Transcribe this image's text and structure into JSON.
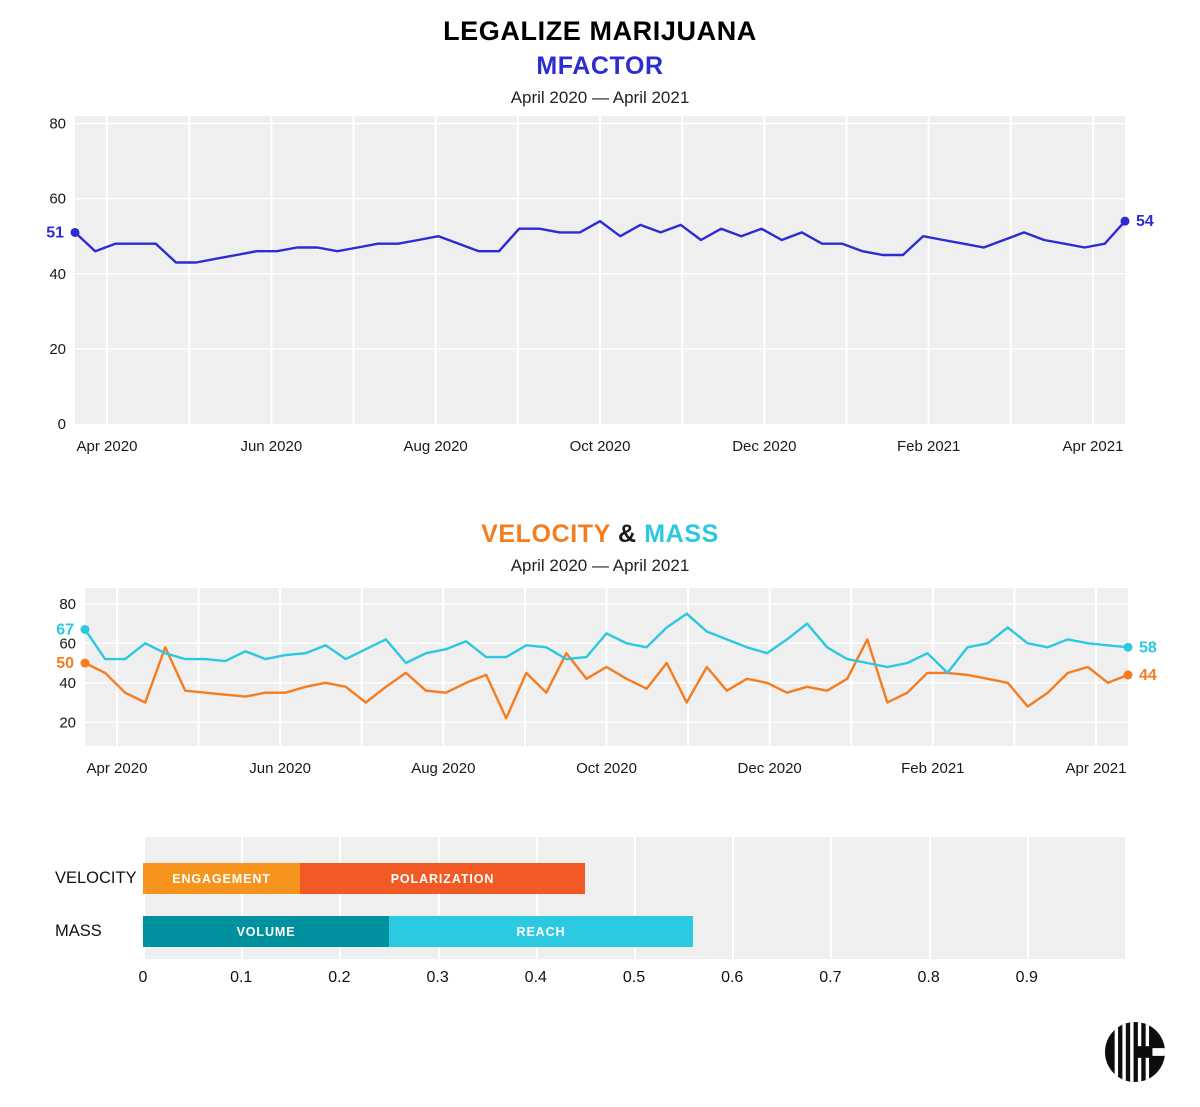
{
  "header": {
    "title": "LEGALIZE MARIJUANA"
  },
  "logo": {
    "icon": "barcode-circle-logo"
  },
  "chart_data": [
    {
      "id": "mfactor",
      "type": "line",
      "title": "MFACTOR",
      "title_color": "#2D2BD2",
      "subtitle": "April 2020 — April 2021",
      "ylim": [
        0,
        82
      ],
      "yticks": [
        0,
        20,
        40,
        60,
        80
      ],
      "grid": "on",
      "xticklabels": [
        "Apr 2020",
        "Jun 2020",
        "Aug 2020",
        "Oct 2020",
        "Dec 2020",
        "Feb 2021",
        "Apr 2021"
      ],
      "series": [
        {
          "name": "mfactor",
          "color": "#2D2BD2",
          "start_label": "51",
          "end_label": "54",
          "values": [
            51,
            46,
            48,
            48,
            48,
            43,
            43,
            44,
            45,
            46,
            46,
            47,
            47,
            46,
            47,
            48,
            48,
            49,
            50,
            48,
            46,
            46,
            52,
            52,
            51,
            51,
            54,
            50,
            53,
            51,
            53,
            49,
            52,
            50,
            52,
            49,
            51,
            48,
            48,
            46,
            45,
            45,
            50,
            49,
            48,
            47,
            49,
            51,
            49,
            48,
            47,
            48,
            54
          ]
        }
      ]
    },
    {
      "id": "velocity-mass",
      "type": "line",
      "title_parts": [
        {
          "text": "VELOCITY",
          "color": "#F57C1F"
        },
        {
          "text": " & ",
          "color": "#1a1a1a"
        },
        {
          "text": "MASS",
          "color": "#2BC8E2"
        }
      ],
      "subtitle": "April 2020 — April 2021",
      "ylim": [
        8,
        88
      ],
      "yticks": [
        20,
        40,
        60,
        80
      ],
      "grid": "on",
      "xticklabels": [
        "Apr 2020",
        "Jun 2020",
        "Aug 2020",
        "Oct 2020",
        "Dec 2020",
        "Feb 2021",
        "Apr 2021"
      ],
      "series": [
        {
          "name": "velocity",
          "color": "#F57C1F",
          "start_label": "50",
          "end_label": "44",
          "values": [
            50,
            45,
            35,
            30,
            58,
            36,
            35,
            34,
            33,
            35,
            35,
            38,
            40,
            38,
            30,
            38,
            45,
            36,
            35,
            40,
            44,
            22,
            45,
            35,
            55,
            42,
            48,
            42,
            37,
            50,
            30,
            48,
            36,
            42,
            40,
            35,
            38,
            36,
            42,
            62,
            30,
            35,
            45,
            45,
            44,
            42,
            40,
            28,
            35,
            45,
            48,
            40,
            44
          ]
        },
        {
          "name": "mass",
          "color": "#2BC8E2",
          "start_label": "67",
          "end_label": "58",
          "values": [
            67,
            52,
            52,
            60,
            55,
            52,
            52,
            51,
            56,
            52,
            54,
            55,
            59,
            52,
            57,
            62,
            50,
            55,
            57,
            61,
            53,
            53,
            59,
            58,
            52,
            53,
            65,
            60,
            58,
            68,
            75,
            66,
            62,
            58,
            55,
            62,
            70,
            58,
            52,
            50,
            48,
            50,
            55,
            45,
            58,
            60,
            68,
            60,
            58,
            62,
            60,
            59,
            58
          ]
        }
      ]
    },
    {
      "id": "components",
      "type": "bar",
      "orientation": "horizontal",
      "xlim": [
        0,
        1.0
      ],
      "xticklabels": [
        "0",
        "0.1",
        "0.2",
        "0.3",
        "0.4",
        "0.5",
        "0.6",
        "0.7",
        "0.8",
        "0.9"
      ],
      "rows": [
        {
          "label": "VELOCITY",
          "segments": [
            {
              "label": "ENGAGEMENT",
              "value": 0.16,
              "color": "#F7941E"
            },
            {
              "label": "POLARIZATION",
              "value": 0.29,
              "color": "#F15A24"
            }
          ]
        },
        {
          "label": "MASS",
          "segments": [
            {
              "label": "VOLUME",
              "value": 0.25,
              "color": "#00919E"
            },
            {
              "label": "REACH",
              "value": 0.31,
              "color": "#2BC9E2"
            }
          ]
        }
      ]
    }
  ]
}
